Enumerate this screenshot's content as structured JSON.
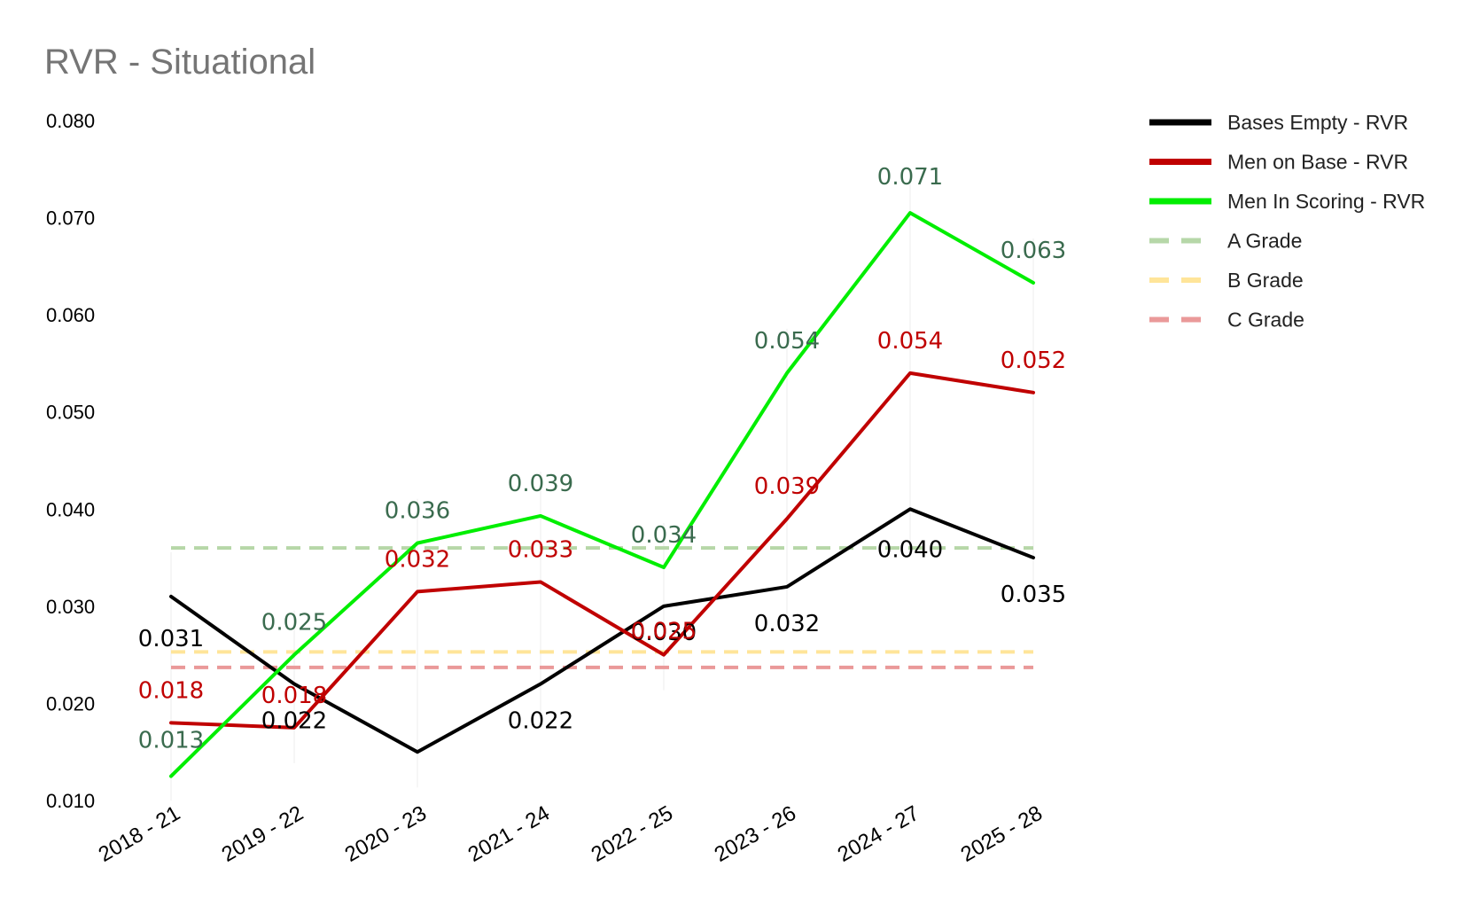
{
  "chart_data": {
    "type": "line",
    "title": "RVR - Situational",
    "xlabel": "",
    "ylabel": "",
    "categories": [
      "2018 - 21",
      "2019 - 22",
      "2020 - 23",
      "2021 - 24",
      "2022 - 25",
      "2023 - 26",
      "2024 - 27",
      "2025 - 28"
    ],
    "ylim": [
      0.01,
      0.08
    ],
    "y_ticks": [
      0.01,
      0.02,
      0.03,
      0.04,
      0.05,
      0.06,
      0.07,
      0.08
    ],
    "y_tick_labels": [
      "0.010",
      "0.020",
      "0.030",
      "0.040",
      "0.050",
      "0.060",
      "0.070",
      "0.080"
    ],
    "grid": false,
    "legend_position": "top-right",
    "series": [
      {
        "name": "Bases Empty - RVR",
        "color": "#000000",
        "values": [
          0.031,
          0.022,
          0.015,
          0.022,
          0.03,
          0.032,
          0.04,
          0.035
        ],
        "labels": [
          "0.031",
          "0.022",
          "",
          "0.022",
          "0.030",
          "0.032",
          "0.040",
          "0.035"
        ],
        "label_color": "#000000"
      },
      {
        "name": "Men on Base - RVR",
        "color": "#c00000",
        "values": [
          0.018,
          0.0175,
          0.0315,
          0.0325,
          0.025,
          0.039,
          0.054,
          0.052
        ],
        "labels": [
          "0.018",
          "0.018",
          "0.032",
          "0.033",
          "0.025",
          "0.039",
          "0.054",
          "0.052"
        ],
        "label_color": "#c00000"
      },
      {
        "name": "Men In Scoring - RVR",
        "color": "#00ee00",
        "values": [
          0.0125,
          0.025,
          0.0365,
          0.0393,
          0.034,
          0.054,
          0.0705,
          0.0633
        ],
        "labels": [
          "0.013",
          "0.025",
          "0.036",
          "0.039",
          "0.034",
          "0.054",
          "0.071",
          "0.063"
        ],
        "label_color": "#3a6b4e"
      }
    ],
    "reference_lines": [
      {
        "name": "A Grade",
        "value": 0.036,
        "color": "#b6d7a8"
      },
      {
        "name": "B Grade",
        "value": 0.0253,
        "color": "#ffe599"
      },
      {
        "name": "C Grade",
        "value": 0.0237,
        "color": "#ea9999"
      }
    ]
  }
}
